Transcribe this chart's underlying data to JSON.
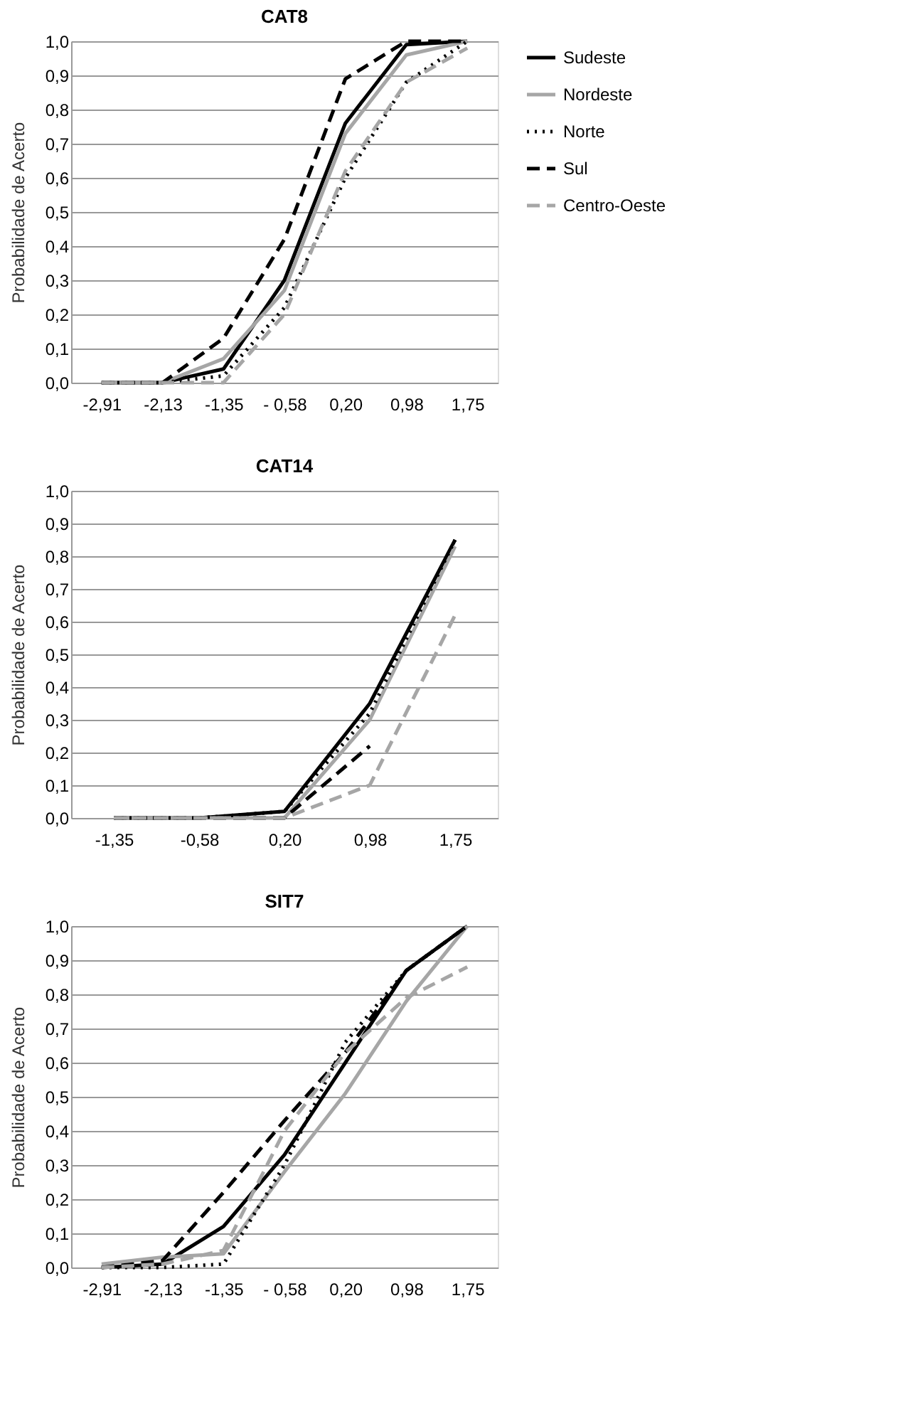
{
  "chart_data": [
    {
      "type": "line",
      "title": "CAT8",
      "ylabel": "Probabilidade de Acerto",
      "categories": [
        "-2,91",
        "-2,13",
        "-1,35",
        "- 0,58",
        "0,20",
        "0,98",
        "1,75"
      ],
      "ylim": [
        0,
        1
      ],
      "yticks": [
        {
          "value": 0,
          "label": "0,0"
        },
        {
          "value": 0.1,
          "label": "0,1"
        },
        {
          "value": 0.2,
          "label": "0,2"
        },
        {
          "value": 0.3,
          "label": "0,3"
        },
        {
          "value": 0.4,
          "label": "0,4"
        },
        {
          "value": 0.5,
          "label": "0,5"
        },
        {
          "value": 0.6,
          "label": "0,6"
        },
        {
          "value": 0.7,
          "label": "0,7"
        },
        {
          "value": 0.8,
          "label": "0,8"
        },
        {
          "value": 0.9,
          "label": "0,9"
        },
        {
          "value": 1,
          "label": "1,0"
        }
      ],
      "grid": "y",
      "legend": "right",
      "series": [
        {
          "name": "Sudeste",
          "color": "#000000",
          "line_style": "solid",
          "values": [
            0,
            0,
            0.04,
            0.3,
            0.76,
            0.99,
            1.0
          ]
        },
        {
          "name": "Nordeste",
          "color": "#a6a6a6",
          "line_style": "solid",
          "values": [
            0,
            0,
            0.07,
            0.27,
            0.73,
            0.96,
            1.0
          ]
        },
        {
          "name": "Norte",
          "color": "#000000",
          "line_style": "dotted",
          "values": [
            0,
            0,
            0.02,
            0.22,
            0.6,
            0.88,
            1.0
          ]
        },
        {
          "name": "Sul",
          "color": "#000000",
          "line_style": "dashed",
          "values": [
            0,
            0,
            0.13,
            0.42,
            0.89,
            1.0,
            1.0
          ]
        },
        {
          "name": "Centro-Oeste",
          "color": "#a6a6a6",
          "line_style": "dashed",
          "values": [
            0,
            0,
            0.0,
            0.2,
            0.62,
            0.88,
            0.98
          ]
        }
      ]
    },
    {
      "type": "line",
      "title": "CAT14",
      "ylabel": "Probabilidade de Acerto",
      "categories": [
        "-1,35",
        "-0,58",
        "0,20",
        "0,98",
        "1,75"
      ],
      "ylim": [
        0,
        1
      ],
      "yticks": [
        {
          "value": 0,
          "label": "0,0"
        },
        {
          "value": 0.1,
          "label": "0,1"
        },
        {
          "value": 0.2,
          "label": "0,2"
        },
        {
          "value": 0.3,
          "label": "0,3"
        },
        {
          "value": 0.4,
          "label": "0,4"
        },
        {
          "value": 0.5,
          "label": "0,5"
        },
        {
          "value": 0.6,
          "label": "0,6"
        },
        {
          "value": 0.7,
          "label": "0,7"
        },
        {
          "value": 0.8,
          "label": "0,8"
        },
        {
          "value": 0.9,
          "label": "0,9"
        },
        {
          "value": 1,
          "label": "1,0"
        }
      ],
      "grid": "y",
      "legend": "right",
      "series": [
        {
          "name": "Sudeste",
          "color": "#000000",
          "line_style": "solid",
          "values": [
            0,
            0,
            0.02,
            0.35,
            0.85
          ]
        },
        {
          "name": "Nordeste",
          "color": "#a6a6a6",
          "line_style": "solid",
          "values": [
            0,
            0,
            0.0,
            0.3,
            0.83
          ]
        },
        {
          "name": "Norte",
          "color": "#000000",
          "line_style": "dotted",
          "values": [
            0,
            0,
            0.02,
            0.32,
            0.85
          ]
        },
        {
          "name": "Sul",
          "color": "#000000",
          "line_style": "dashed",
          "values": [
            0,
            0,
            0.0,
            0.22,
            null
          ]
        },
        {
          "name": "Centro-Oeste",
          "color": "#a6a6a6",
          "line_style": "dashed",
          "values": [
            0,
            0,
            0.0,
            0.1,
            0.62
          ]
        }
      ]
    },
    {
      "type": "line",
      "title": "SIT7",
      "ylabel": "Probabilidade de Acerto",
      "categories": [
        "-2,91",
        "-2,13",
        "-1,35",
        "- 0,58",
        "0,20",
        "0,98",
        "1,75"
      ],
      "ylim": [
        0,
        1
      ],
      "yticks": [
        {
          "value": 0,
          "label": "0,0"
        },
        {
          "value": 0.1,
          "label": "0,1"
        },
        {
          "value": 0.2,
          "label": "0,2"
        },
        {
          "value": 0.3,
          "label": "0,3"
        },
        {
          "value": 0.4,
          "label": "0,4"
        },
        {
          "value": 0.5,
          "label": "0,5"
        },
        {
          "value": 0.6,
          "label": "0,6"
        },
        {
          "value": 0.7,
          "label": "0,7"
        },
        {
          "value": 0.8,
          "label": "0,8"
        },
        {
          "value": 0.9,
          "label": "0,9"
        },
        {
          "value": 1,
          "label": "1,0"
        }
      ],
      "grid": "y",
      "legend": "right",
      "series": [
        {
          "name": "Sudeste",
          "color": "#000000",
          "line_style": "solid",
          "values": [
            0,
            0.01,
            0.12,
            0.33,
            0.6,
            0.87,
            1.0
          ]
        },
        {
          "name": "Nordeste",
          "color": "#a6a6a6",
          "line_style": "solid",
          "values": [
            0.01,
            0.03,
            0.04,
            0.28,
            0.51,
            0.78,
            1.0
          ]
        },
        {
          "name": "Norte",
          "color": "#000000",
          "line_style": "dotted",
          "values": [
            0,
            0,
            0.01,
            0.3,
            0.66,
            0.87,
            1.0
          ]
        },
        {
          "name": "Sul",
          "color": "#000000",
          "line_style": "dashed",
          "values": [
            0,
            0.02,
            0.22,
            0.43,
            0.63,
            0.87,
            1.0
          ]
        },
        {
          "name": "Centro-Oeste",
          "color": "#a6a6a6",
          "line_style": "dashed",
          "values": [
            0,
            0.01,
            0.05,
            0.4,
            0.63,
            0.79,
            0.88
          ]
        }
      ]
    }
  ]
}
